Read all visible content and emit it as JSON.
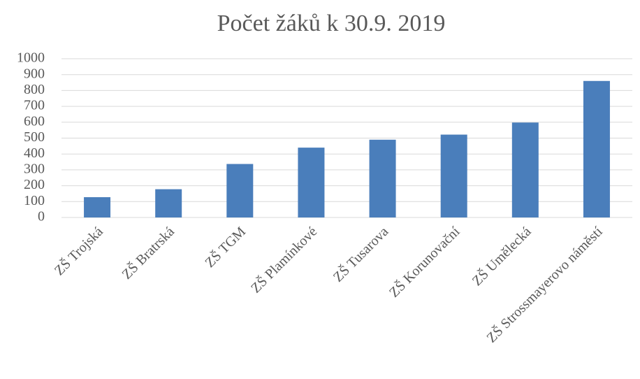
{
  "chart_data": {
    "type": "bar",
    "title": "Počet žáků k 30.9. 2019",
    "categories": [
      "ZŠ Trojská",
      "ZŠ Bratrská",
      "ZŠ TGM",
      "ZŠ Plamínkové",
      "ZŠ Tusarova",
      "ZŠ Korunovační",
      "ZŠ Umělecká",
      "ZŠ Strossmayerovo náměstí"
    ],
    "values": [
      128,
      178,
      337,
      440,
      490,
      522,
      598,
      860
    ],
    "color": "#4a7ebb",
    "ylim": [
      0,
      1000
    ],
    "yticks": [
      0,
      100,
      200,
      300,
      400,
      500,
      600,
      700,
      800,
      900,
      1000
    ],
    "grid": true
  }
}
